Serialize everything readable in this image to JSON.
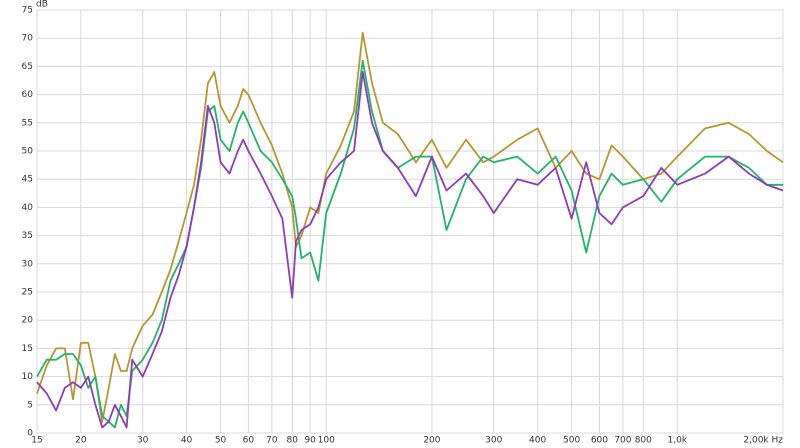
{
  "chart_data": {
    "type": "line",
    "y_label": "dB",
    "log_x": true,
    "grid": true,
    "x": [
      15,
      16,
      17,
      18,
      19,
      20,
      21,
      22,
      23,
      24,
      25,
      26,
      27,
      28,
      30,
      32,
      34,
      36,
      38,
      40,
      42,
      44,
      46,
      48,
      50,
      53,
      56,
      58,
      60,
      65,
      70,
      75,
      80,
      82,
      85,
      90,
      95,
      100,
      110,
      120,
      127,
      135,
      145,
      160,
      180,
      200,
      220,
      250,
      280,
      300,
      350,
      400,
      450,
      500,
      550,
      600,
      650,
      700,
      800,
      900,
      1000,
      1200,
      1400,
      1600,
      1800,
      2000
    ],
    "series": [
      {
        "color": "#b8962e",
        "values": [
          7,
          12,
          15,
          15,
          6,
          16,
          16,
          10,
          2,
          8,
          14,
          11,
          11,
          15,
          19,
          21,
          25,
          29,
          34,
          39,
          44,
          52,
          62,
          64,
          58,
          55,
          58,
          61,
          60,
          55,
          51,
          46,
          40,
          33,
          35,
          40,
          39,
          46,
          51,
          57,
          71,
          62,
          55,
          53,
          48,
          52,
          47,
          52,
          48,
          49,
          52,
          54,
          47,
          50,
          46,
          45,
          51,
          49,
          45,
          46,
          49,
          54,
          55,
          53,
          50,
          48
        ]
      },
      {
        "color": "#22b36b",
        "values": [
          10,
          13,
          13,
          14,
          14,
          12,
          8,
          10,
          3,
          2,
          1,
          5,
          3,
          11,
          13,
          16,
          20,
          27,
          30,
          33,
          40,
          47,
          57,
          58,
          52,
          50,
          55,
          57,
          55,
          50,
          48,
          45,
          42,
          38,
          31,
          32,
          27,
          39,
          46,
          54,
          66,
          57,
          50,
          47,
          49,
          49,
          36,
          45,
          49,
          48,
          49,
          46,
          49,
          43,
          32,
          42,
          46,
          44,
          45,
          41,
          45,
          49,
          49,
          47,
          44,
          44
        ]
      },
      {
        "color": "#8e3bb5",
        "values": [
          9,
          7,
          4,
          8,
          9,
          8,
          10,
          5,
          1,
          2,
          5,
          3,
          1,
          13,
          10,
          14,
          18,
          24,
          28,
          33,
          40,
          48,
          58,
          55,
          48,
          46,
          50,
          52,
          50,
          46,
          42,
          38,
          24,
          34,
          36,
          37,
          40,
          45,
          48,
          50,
          64,
          55,
          50,
          47,
          42,
          49,
          43,
          46,
          42,
          39,
          45,
          44,
          47,
          38,
          48,
          39,
          37,
          40,
          42,
          47,
          44,
          46,
          49,
          46,
          44,
          43
        ]
      }
    ],
    "xlim": [
      15,
      2000
    ],
    "ylim": [
      0,
      75
    ],
    "xticks": [
      15,
      20,
      30,
      40,
      50,
      60,
      70,
      80,
      90,
      100,
      200,
      300,
      400,
      500,
      600,
      700,
      800,
      {
        "value": 1000,
        "label": "1,0k"
      },
      {
        "value": 2000,
        "label": "2,00k Hz"
      }
    ],
    "yticks": [
      0,
      5,
      10,
      15,
      20,
      25,
      30,
      35,
      40,
      45,
      50,
      55,
      60,
      65,
      70,
      75
    ]
  }
}
